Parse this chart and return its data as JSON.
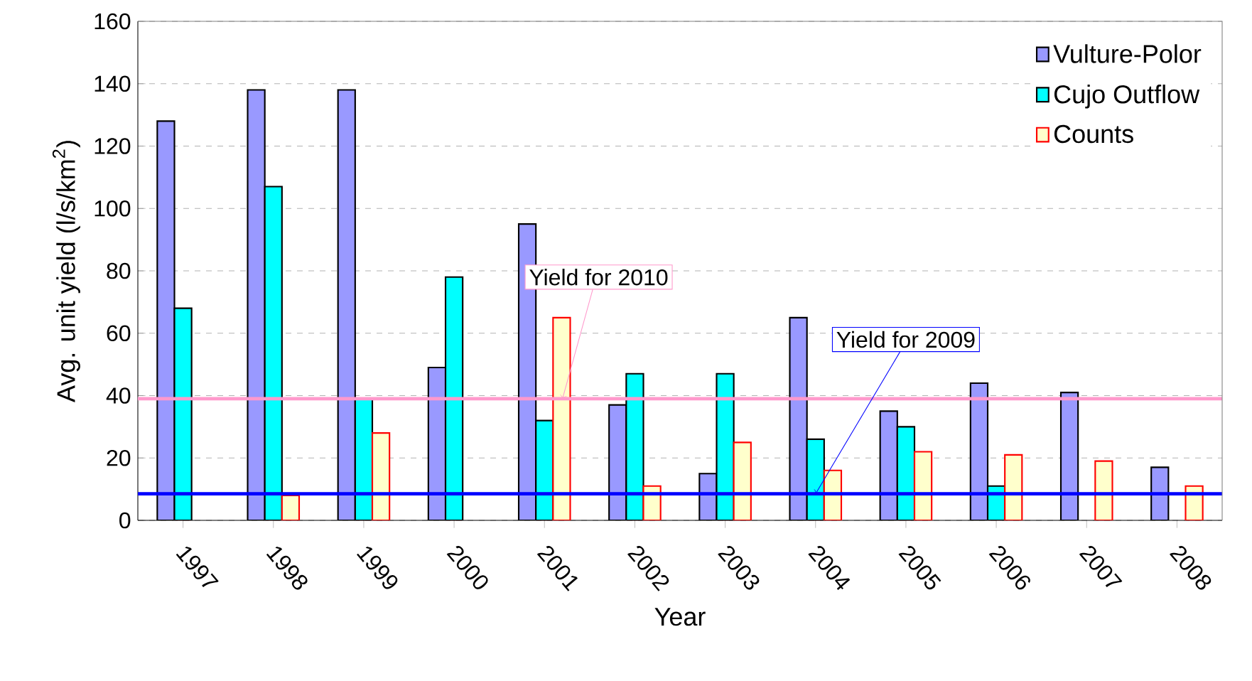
{
  "chart_data": {
    "type": "bar",
    "xlabel": "Year",
    "ylabel": "Avg. unit yield (l/s/km$^{2}$)",
    "categories": [
      "1997",
      "1998",
      "1999",
      "2000",
      "2001",
      "2002",
      "2003",
      "2004",
      "2005",
      "2006",
      "2007",
      "2008"
    ],
    "series": [
      {
        "name": "Vulture-Polor",
        "color": "#9999ff",
        "values": [
          128,
          138,
          138,
          49,
          95,
          37,
          15,
          65,
          35,
          44,
          41,
          17
        ]
      },
      {
        "name": "Cujo Outflow",
        "color": "#00ffff",
        "values": [
          68,
          107,
          39,
          78,
          32,
          47,
          47,
          26,
          30,
          11,
          null,
          null
        ]
      },
      {
        "name": "Counts",
        "color": "#ffffcc",
        "values": [
          null,
          8,
          28,
          null,
          65,
          11,
          25,
          16,
          22,
          21,
          19,
          11
        ]
      }
    ],
    "ylim": [
      0,
      160
    ],
    "yticks": [
      0,
      20,
      40,
      60,
      80,
      100,
      120,
      140,
      160
    ],
    "ref_lines": [
      {
        "axis": "y",
        "value": 39,
        "label": "Yield for 2010",
        "color": "#ff99cc"
      },
      {
        "axis": "y",
        "value": 8.5,
        "label": "Yield for 2009",
        "color": "#0000ff"
      }
    ],
    "grid": "y",
    "legend": "top right"
  }
}
